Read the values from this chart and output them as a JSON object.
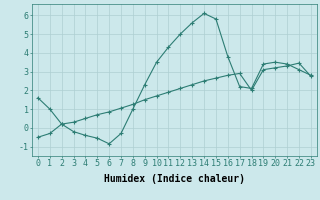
{
  "line1_x": [
    0,
    1,
    2,
    3,
    4,
    5,
    6,
    7,
    8,
    9,
    10,
    11,
    12,
    13,
    14,
    15,
    16,
    17,
    18,
    19,
    20,
    21,
    22,
    23
  ],
  "line1_y": [
    1.6,
    1.0,
    0.2,
    -0.2,
    -0.4,
    -0.55,
    -0.85,
    -0.3,
    1.0,
    2.3,
    3.5,
    4.3,
    5.0,
    5.6,
    6.1,
    5.8,
    3.8,
    2.2,
    2.1,
    3.4,
    3.5,
    3.4,
    3.1,
    2.8
  ],
  "line2_x": [
    0,
    1,
    2,
    3,
    4,
    5,
    6,
    7,
    8,
    9,
    10,
    11,
    12,
    13,
    14,
    15,
    16,
    17,
    18,
    19,
    20,
    21,
    22,
    23
  ],
  "line2_y": [
    -0.5,
    -0.3,
    0.2,
    0.3,
    0.5,
    0.7,
    0.85,
    1.05,
    1.25,
    1.5,
    1.7,
    1.9,
    2.1,
    2.3,
    2.5,
    2.65,
    2.8,
    2.9,
    2.0,
    3.1,
    3.2,
    3.3,
    3.45,
    2.75
  ],
  "line_color": "#2d7d74",
  "background_color": "#cce8eb",
  "grid_color": "#aecfd2",
  "xlabel": "Humidex (Indice chaleur)",
  "xlim": [
    -0.5,
    23.5
  ],
  "ylim": [
    -1.5,
    6.6
  ],
  "yticks": [
    -1,
    0,
    1,
    2,
    3,
    4,
    5,
    6
  ],
  "xticks": [
    0,
    1,
    2,
    3,
    4,
    5,
    6,
    7,
    8,
    9,
    10,
    11,
    12,
    13,
    14,
    15,
    16,
    17,
    18,
    19,
    20,
    21,
    22,
    23
  ],
  "xlabel_fontsize": 7,
  "tick_fontsize": 6,
  "linewidth": 0.8,
  "markersize": 3
}
